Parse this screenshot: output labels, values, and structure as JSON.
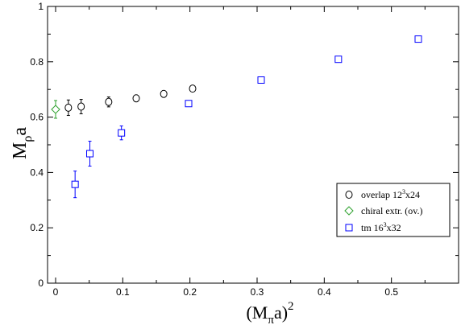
{
  "chart_data": {
    "type": "scatter",
    "xlabel": {
      "base": "(M",
      "sub": "π",
      "after": "a)",
      "sup": "2"
    },
    "ylabel": {
      "base": "M",
      "sub": "ρ",
      "after": "a"
    },
    "xlim": [
      -0.012,
      0.6
    ],
    "ylim": [
      0,
      1
    ],
    "x_ticks": [
      0,
      0.1,
      0.2,
      0.3,
      0.4,
      0.5
    ],
    "x_tick_labels": [
      "0",
      "0.1",
      "0.2",
      "0.3",
      "0.4",
      "0.5"
    ],
    "y_ticks": [
      0,
      0.2,
      0.4,
      0.6,
      0.8,
      1
    ],
    "y_tick_labels": [
      "0",
      "0.2",
      "0.4",
      "0.6",
      "0.8",
      "1"
    ],
    "grid": false,
    "legend_position": "bottom-right",
    "series": [
      {
        "label": {
          "base": "overlap 12",
          "sup": "3",
          "after": "x24"
        },
        "marker": "circle",
        "color": "#000000",
        "points": [
          {
            "x": 0.019,
            "y": 0.634,
            "err": 0.028
          },
          {
            "x": 0.038,
            "y": 0.638,
            "err": 0.026
          },
          {
            "x": 0.079,
            "y": 0.655,
            "err": 0.018
          },
          {
            "x": 0.12,
            "y": 0.668,
            "err": 0.012
          },
          {
            "x": 0.161,
            "y": 0.684,
            "err": 0.01
          },
          {
            "x": 0.204,
            "y": 0.703,
            "err": 0.01
          }
        ]
      },
      {
        "label": {
          "base": "chiral extr. (ov.)",
          "sup": "",
          "after": ""
        },
        "marker": "diamond",
        "color": "#2ca02c",
        "points": [
          {
            "x": 0.0,
            "y": 0.628,
            "err": 0.032
          }
        ]
      },
      {
        "label": {
          "base": "tm 16",
          "sup": "3",
          "after": "x32"
        },
        "marker": "square",
        "color": "#0000ff",
        "points": [
          {
            "x": 0.029,
            "y": 0.357,
            "err": 0.048
          },
          {
            "x": 0.051,
            "y": 0.468,
            "err": 0.045
          },
          {
            "x": 0.098,
            "y": 0.543,
            "err": 0.025
          },
          {
            "x": 0.198,
            "y": 0.649,
            "err": 0.008
          },
          {
            "x": 0.306,
            "y": 0.734,
            "err": 0.006
          },
          {
            "x": 0.421,
            "y": 0.809,
            "err": 0.005
          },
          {
            "x": 0.54,
            "y": 0.882,
            "err": 0.004
          }
        ]
      }
    ]
  }
}
